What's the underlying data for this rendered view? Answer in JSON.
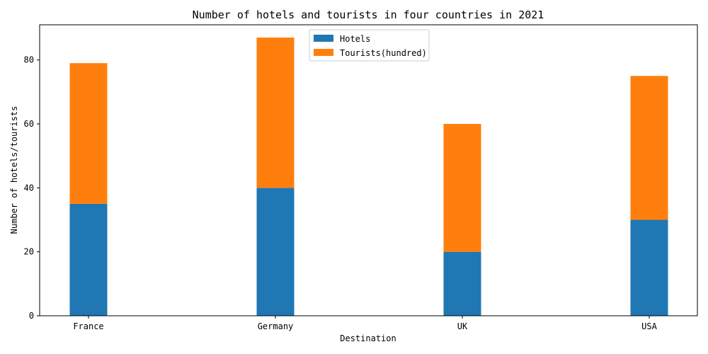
{
  "chart_data": {
    "type": "bar",
    "stacked": true,
    "title": "Number of hotels and tourists in four countries in 2021",
    "xlabel": "Destination",
    "ylabel": "Number of hotels/tourists",
    "categories": [
      "France",
      "Germany",
      "UK",
      "USA"
    ],
    "series": [
      {
        "name": "Hotels",
        "values": [
          35,
          40,
          20,
          30
        ],
        "color": "#1f77b4"
      },
      {
        "name": "Tourists(hundred)",
        "values": [
          44,
          47,
          40,
          45
        ],
        "color": "#ff7f0e"
      }
    ],
    "ylim": [
      0,
      91
    ],
    "yticks": [
      0,
      20,
      40,
      60,
      80
    ],
    "grid": false,
    "legend_position": "top-center"
  }
}
